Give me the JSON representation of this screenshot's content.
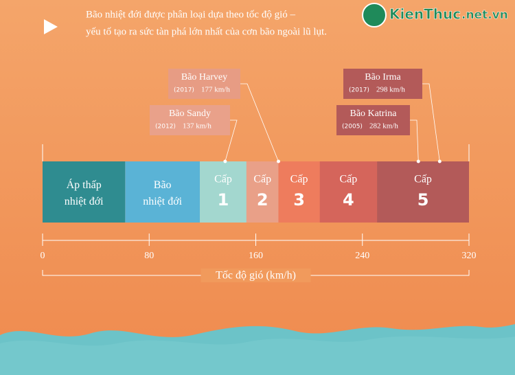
{
  "chart_data": {
    "type": "category-scale",
    "title": "Bão nhiệt đới được phân loại dựa theo tốc độ gió –",
    "subtitle": "yếu tố tạo ra sức tàn phá lớn nhất của cơn bão ngoài lũ lụt.",
    "watermark": "KienThuc",
    "watermark_domain": ".net.vn",
    "segments": [
      {
        "label": "Áp thấp nhiệt đới",
        "start": 0,
        "end": 62,
        "color": "#2f8c90"
      },
      {
        "label": "Bão nhiệt đới",
        "start": 62,
        "end": 118,
        "color": "#5ab3d6"
      },
      {
        "label": "Cấp",
        "level": "1",
        "start": 118,
        "end": 153,
        "color": "#a3d7cf"
      },
      {
        "label": "Cấp",
        "level": "2",
        "start": 153,
        "end": 177,
        "color": "#e9a088"
      },
      {
        "label": "Cấp",
        "level": "3",
        "start": 177,
        "end": 208,
        "color": "#ee7c5d"
      },
      {
        "label": "Cấp",
        "level": "4",
        "start": 208,
        "end": 251,
        "color": "#d5655b"
      },
      {
        "label": "Cấp",
        "level": "5",
        "start": 251,
        "end": 320,
        "color": "#b35a59"
      }
    ],
    "xlim": [
      0,
      320
    ],
    "xticks": [
      0,
      80,
      160,
      240,
      320
    ],
    "xlabel": "Tốc độ gió (km/h)",
    "storms": [
      {
        "name": "Bão Harvey",
        "year": "(2017)",
        "value": 177,
        "value_label": "177 km/h",
        "color": "#e79c84"
      },
      {
        "name": "Bão Sandy",
        "year": "(2012)",
        "value": 137,
        "value_label": "137 km/h",
        "color": "#e9a18a"
      },
      {
        "name": "Bão Irma",
        "year": "(2017)",
        "value": 298,
        "value_label": "298 km/h",
        "color": "#b35a59"
      },
      {
        "name": "Bão Katrina",
        "year": "(2005)",
        "value": 282,
        "value_label": "282 km/h",
        "color": "#b35a59"
      }
    ]
  }
}
